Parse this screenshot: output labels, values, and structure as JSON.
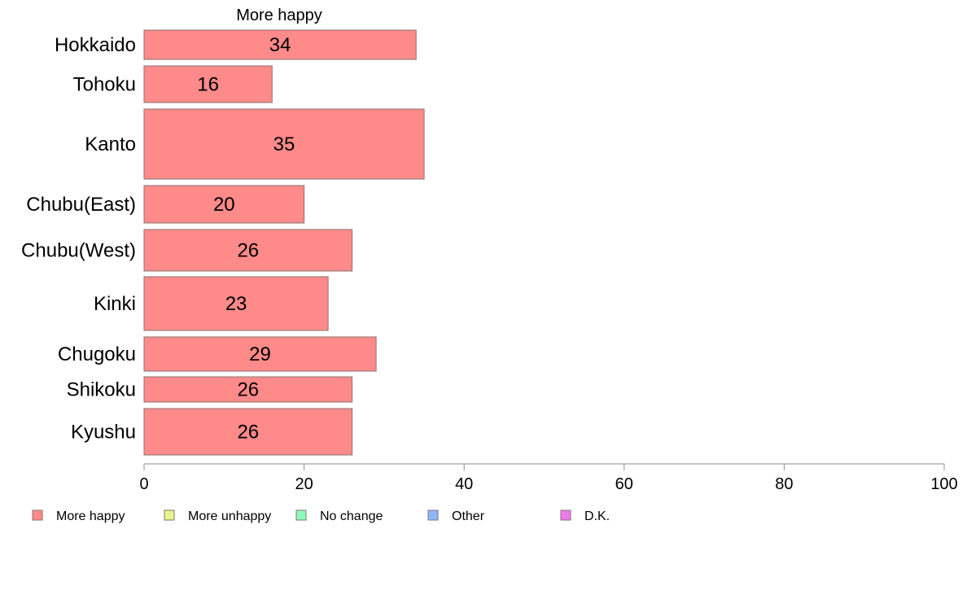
{
  "chart_data": {
    "type": "bar",
    "orientation": "horizontal",
    "stacked": true,
    "title": "More happy",
    "categories": [
      "Hokkaido",
      "Tohoku",
      "Kanto",
      "Chubu(East)",
      "Chubu(West)",
      "Kinki",
      "Chugoku",
      "Shikoku",
      "Kyushu"
    ],
    "series": [
      {
        "name": "More happy",
        "color": "#ff8a8a",
        "values": [
          34,
          16,
          35,
          20,
          26,
          23,
          29,
          26,
          26
        ]
      }
    ],
    "data_labels": [
      "34",
      "16",
      "35",
      "20",
      "26",
      "23",
      "29",
      "26",
      "26"
    ],
    "xlim": [
      0,
      100
    ],
    "xticks": [
      0,
      20,
      40,
      60,
      80,
      100
    ],
    "xtick_labels": [
      "0",
      "20",
      "40",
      "60",
      "80",
      "100"
    ],
    "grid": false,
    "legend_placement": "bottom",
    "legend": [
      {
        "label": "More happy",
        "color": "#ff8a8a"
      },
      {
        "label": "More unhappy",
        "color": "#e8f58a"
      },
      {
        "label": "No change",
        "color": "#8affb8"
      },
      {
        "label": "Other",
        "color": "#8ab8ff"
      },
      {
        "label": "D.K.",
        "color": "#ee7aee"
      }
    ]
  }
}
